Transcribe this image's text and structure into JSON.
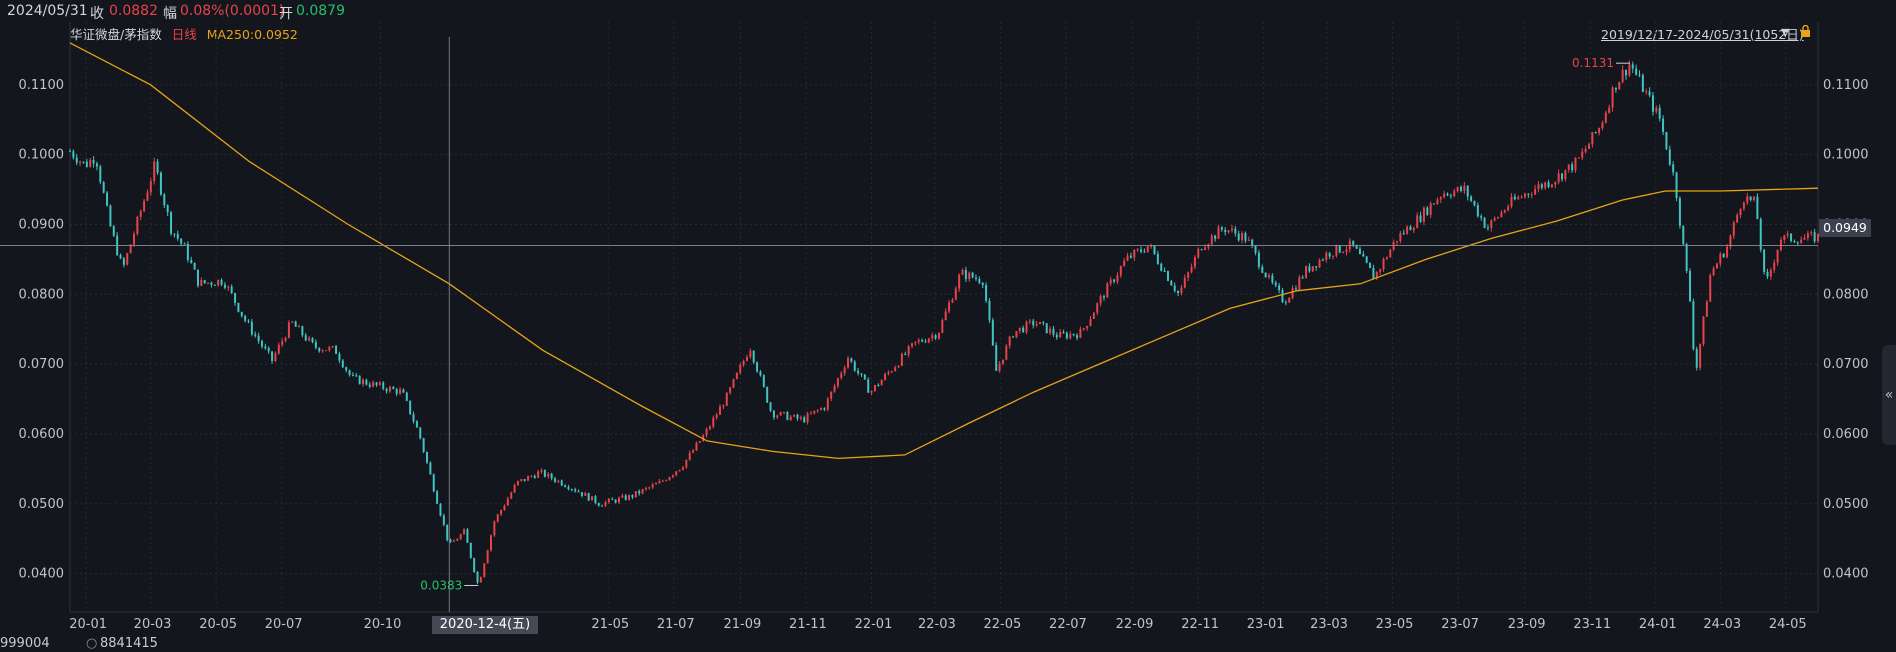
{
  "header": {
    "date": "2024/05/31",
    "close_label": "收",
    "close_value": "0.0882",
    "change_label": "幅",
    "change_value": "0.08%(0.0001)",
    "open_label": "开",
    "open_value": "0.0879"
  },
  "legend": {
    "name": "华证微盘/茅指数",
    "period": "日线",
    "ma": "MA250:0.0952"
  },
  "range_label": "2019/12/17-2024/05/31(1052日)",
  "current_price_tag": "0.0949",
  "cursor_date": "2020-12-4(五)",
  "footer": {
    "code": "999004",
    "value": "8841415"
  },
  "collapse_glyph": "«",
  "colors": {
    "up": "#e8434a",
    "down": "#3fc5c2",
    "ma": "#e8a317",
    "bg": "#13161d",
    "grid": "#262a33"
  },
  "chart_data": {
    "type": "candlestick",
    "title": "华证微盘/茅指数",
    "period": "日线",
    "date_range": [
      "2019/12/17",
      "2024/05/31"
    ],
    "bars": 1052,
    "ylim": [
      0.0345,
      0.119
    ],
    "yticks": [
      "0.0400",
      "0.0500",
      "0.0600",
      "0.0700",
      "0.0800",
      "0.0900",
      "0.1000",
      "0.1100"
    ],
    "xticks": [
      "20-01",
      "20-03",
      "20-05",
      "20-07",
      "20-10",
      "21-05",
      "21-07",
      "21-09",
      "21-11",
      "22-01",
      "22-03",
      "22-05",
      "22-07",
      "22-09",
      "22-11",
      "23-01",
      "23-03",
      "23-05",
      "23-07",
      "23-09",
      "23-11",
      "24-01",
      "24-03",
      "24-05"
    ],
    "xtick_dates": [
      "2020-01",
      "2020-03",
      "2020-05",
      "2020-07",
      "2020-10",
      "2021-05",
      "2021-07",
      "2021-09",
      "2021-11",
      "2022-01",
      "2022-03",
      "2022-05",
      "2022-07",
      "2022-09",
      "2022-11",
      "2023-01",
      "2023-03",
      "2023-05",
      "2023-07",
      "2023-09",
      "2023-11",
      "2024-01",
      "2024-03",
      "2024-05"
    ],
    "price_path": [
      [
        "2019-12-17",
        0.1005
      ],
      [
        "2019-12-31",
        0.0985
      ],
      [
        "2020-01-10",
        0.0998
      ],
      [
        "2020-01-23",
        0.09
      ],
      [
        "2020-02-04",
        0.0835
      ],
      [
        "2020-02-18",
        0.0905
      ],
      [
        "2020-03-05",
        0.0985
      ],
      [
        "2020-03-20",
        0.0895
      ],
      [
        "2020-04-02",
        0.0865
      ],
      [
        "2020-04-15",
        0.0815
      ],
      [
        "2020-05-08",
        0.082
      ],
      [
        "2020-05-29",
        0.076
      ],
      [
        "2020-06-22",
        0.0705
      ],
      [
        "2020-07-10",
        0.076
      ],
      [
        "2020-07-31",
        0.0725
      ],
      [
        "2020-08-20",
        0.072
      ],
      [
        "2020-09-04",
        0.068
      ],
      [
        "2020-09-25",
        0.067
      ],
      [
        "2020-10-21",
        0.066
      ],
      [
        "2020-11-06",
        0.06
      ],
      [
        "2020-11-20",
        0.052
      ],
      [
        "2020-12-04",
        0.044
      ],
      [
        "2020-12-18",
        0.046
      ],
      [
        "2020-12-31",
        0.0383
      ],
      [
        "2021-01-15",
        0.0475
      ],
      [
        "2021-02-05",
        0.053
      ],
      [
        "2021-02-26",
        0.0545
      ],
      [
        "2021-03-26",
        0.0525
      ],
      [
        "2021-04-23",
        0.05
      ],
      [
        "2021-05-21",
        0.051
      ],
      [
        "2021-06-18",
        0.053
      ],
      [
        "2021-07-09",
        0.0555
      ],
      [
        "2021-07-30",
        0.06
      ],
      [
        "2021-08-20",
        0.0655
      ],
      [
        "2021-09-10",
        0.0725
      ],
      [
        "2021-09-30",
        0.063
      ],
      [
        "2021-10-29",
        0.062
      ],
      [
        "2021-11-19",
        0.064
      ],
      [
        "2021-12-10",
        0.071
      ],
      [
        "2021-12-31",
        0.066
      ],
      [
        "2022-01-21",
        0.0695
      ],
      [
        "2022-02-11",
        0.073
      ],
      [
        "2022-03-04",
        0.0745
      ],
      [
        "2022-03-25",
        0.083
      ],
      [
        "2022-04-15",
        0.082
      ],
      [
        "2022-04-27",
        0.069
      ],
      [
        "2022-05-13",
        0.0745
      ],
      [
        "2022-06-02",
        0.076
      ],
      [
        "2022-06-24",
        0.074
      ],
      [
        "2022-07-15",
        0.0745
      ],
      [
        "2022-08-05",
        0.08
      ],
      [
        "2022-08-26",
        0.085
      ],
      [
        "2022-09-16",
        0.087
      ],
      [
        "2022-10-14",
        0.08
      ],
      [
        "2022-11-04",
        0.087
      ],
      [
        "2022-11-25",
        0.0895
      ],
      [
        "2022-12-16",
        0.088
      ],
      [
        "2023-01-06",
        0.082
      ],
      [
        "2023-01-20",
        0.079
      ],
      [
        "2023-02-10",
        0.0835
      ],
      [
        "2023-03-03",
        0.086
      ],
      [
        "2023-03-24",
        0.087
      ],
      [
        "2023-04-14",
        0.0825
      ],
      [
        "2023-05-05",
        0.088
      ],
      [
        "2023-05-26",
        0.091
      ],
      [
        "2023-06-16",
        0.0945
      ],
      [
        "2023-07-07",
        0.095
      ],
      [
        "2023-07-28",
        0.0895
      ],
      [
        "2023-08-18",
        0.093
      ],
      [
        "2023-09-08",
        0.095
      ],
      [
        "2023-09-29",
        0.0965
      ],
      [
        "2023-10-20",
        0.099
      ],
      [
        "2023-11-10",
        0.104
      ],
      [
        "2023-11-24",
        0.11
      ],
      [
        "2023-12-08",
        0.1131
      ],
      [
        "2023-12-22",
        0.109
      ],
      [
        "2024-01-05",
        0.105
      ],
      [
        "2024-01-19",
        0.096
      ],
      [
        "2024-02-02",
        0.079
      ],
      [
        "2024-02-07",
        0.0685
      ],
      [
        "2024-02-21",
        0.083
      ],
      [
        "2024-03-08",
        0.087
      ],
      [
        "2024-03-22",
        0.094
      ],
      [
        "2024-04-03",
        0.093
      ],
      [
        "2024-04-12",
        0.081
      ],
      [
        "2024-04-26",
        0.088
      ],
      [
        "2024-05-15",
        0.088
      ],
      [
        "2024-05-31",
        0.0882
      ]
    ],
    "ma250_path": [
      [
        "2019-12-17",
        0.116
      ],
      [
        "2020-03-01",
        0.11
      ],
      [
        "2020-06-01",
        0.099
      ],
      [
        "2020-09-01",
        0.09
      ],
      [
        "2020-12-04",
        0.0815
      ],
      [
        "2021-03-01",
        0.072
      ],
      [
        "2021-06-01",
        0.064
      ],
      [
        "2021-08-01",
        0.059
      ],
      [
        "2021-10-01",
        0.0575
      ],
      [
        "2021-12-01",
        0.0565
      ],
      [
        "2022-02-01",
        0.057
      ],
      [
        "2022-04-01",
        0.0615
      ],
      [
        "2022-06-01",
        0.066
      ],
      [
        "2022-08-01",
        0.07
      ],
      [
        "2022-10-01",
        0.074
      ],
      [
        "2022-12-01",
        0.078
      ],
      [
        "2023-02-01",
        0.0805
      ],
      [
        "2023-04-01",
        0.0815
      ],
      [
        "2023-06-01",
        0.085
      ],
      [
        "2023-08-01",
        0.088
      ],
      [
        "2023-10-01",
        0.0905
      ],
      [
        "2023-12-01",
        0.0935
      ],
      [
        "2024-01-10",
        0.0948
      ],
      [
        "2024-03-01",
        0.0948
      ],
      [
        "2024-05-31",
        0.0952
      ]
    ],
    "annotations": [
      {
        "text": "0.1131",
        "date": "2023-12-08",
        "y": 0.1131
      },
      {
        "text": "0.0383",
        "date": "2020-12-31",
        "y": 0.0383
      }
    ],
    "cursor": {
      "date": "2020-12-04",
      "y": 0.087
    }
  }
}
